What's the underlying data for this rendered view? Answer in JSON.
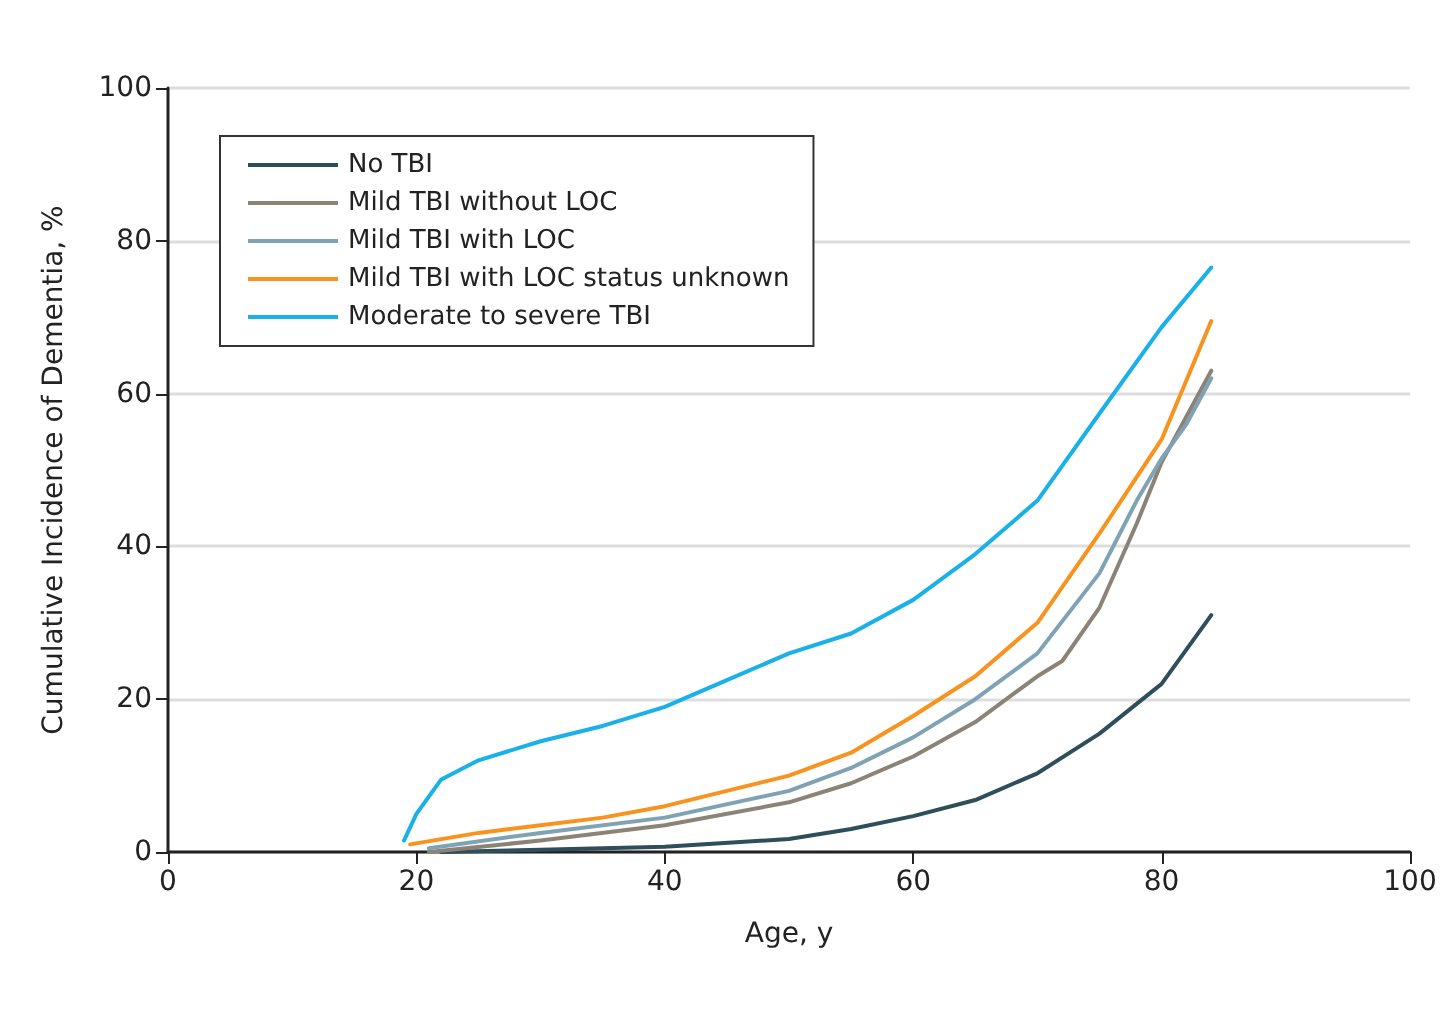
{
  "chart_data": {
    "type": "line",
    "xlabel": "Age, y",
    "ylabel": "Cumulative Incidence of Dementia, %",
    "xlim": [
      0,
      100
    ],
    "xticks": [
      0,
      20,
      40,
      60,
      80,
      100
    ],
    "ylim": [
      0,
      100
    ],
    "yticks": [
      0,
      20,
      40,
      60,
      80,
      100
    ],
    "grid": "y",
    "legend": "top left",
    "marker": "none",
    "line_style": "solid",
    "series": [
      {
        "name": "No TBI",
        "color": "#2e4e5c",
        "x": [
          22,
          30,
          40,
          50,
          55,
          60,
          65,
          70,
          75,
          80,
          84
        ],
        "values": [
          0,
          0.3,
          0.7,
          1.7,
          3,
          4.7,
          6.8,
          10.3,
          15.5,
          22,
          31
        ]
      },
      {
        "name": "Mild TBI without LOC",
        "color": "#8c8377",
        "x": [
          21,
          30,
          40,
          50,
          55,
          60,
          65,
          70,
          72,
          75,
          78,
          80,
          82,
          84
        ],
        "values": [
          0,
          1.5,
          3.5,
          6.5,
          9,
          12.5,
          17,
          23,
          25,
          32,
          43,
          51,
          57,
          63
        ]
      },
      {
        "name": "Mild TBI with LOC",
        "color": "#7fa3b5",
        "x": [
          21,
          30,
          40,
          50,
          55,
          60,
          65,
          70,
          75,
          78,
          80,
          82,
          84
        ],
        "values": [
          0.5,
          2.5,
          4.5,
          8,
          11,
          15,
          20,
          26,
          36.5,
          46,
          51.5,
          56,
          62
        ]
      },
      {
        "name": "Mild TBI with LOC status unknown",
        "color": "#f7931e",
        "x": [
          19.5,
          25,
          30,
          35,
          40,
          45,
          50,
          55,
          60,
          65,
          70,
          75,
          80,
          84
        ],
        "values": [
          1,
          2.5,
          3.5,
          4.5,
          6,
          8,
          10,
          13,
          17.8,
          23,
          30,
          41.7,
          54,
          69.5
        ]
      },
      {
        "name": "Moderate to severe TBI",
        "color": "#1ab0e8",
        "x": [
          19,
          20,
          22,
          25,
          30,
          35,
          40,
          45,
          50,
          55,
          60,
          65,
          70,
          75,
          80,
          84
        ],
        "values": [
          1.5,
          5,
          9.5,
          12,
          14.5,
          16.5,
          19,
          22.5,
          26,
          28.6,
          33,
          39,
          46,
          57.4,
          68.7,
          76.5
        ]
      }
    ]
  }
}
